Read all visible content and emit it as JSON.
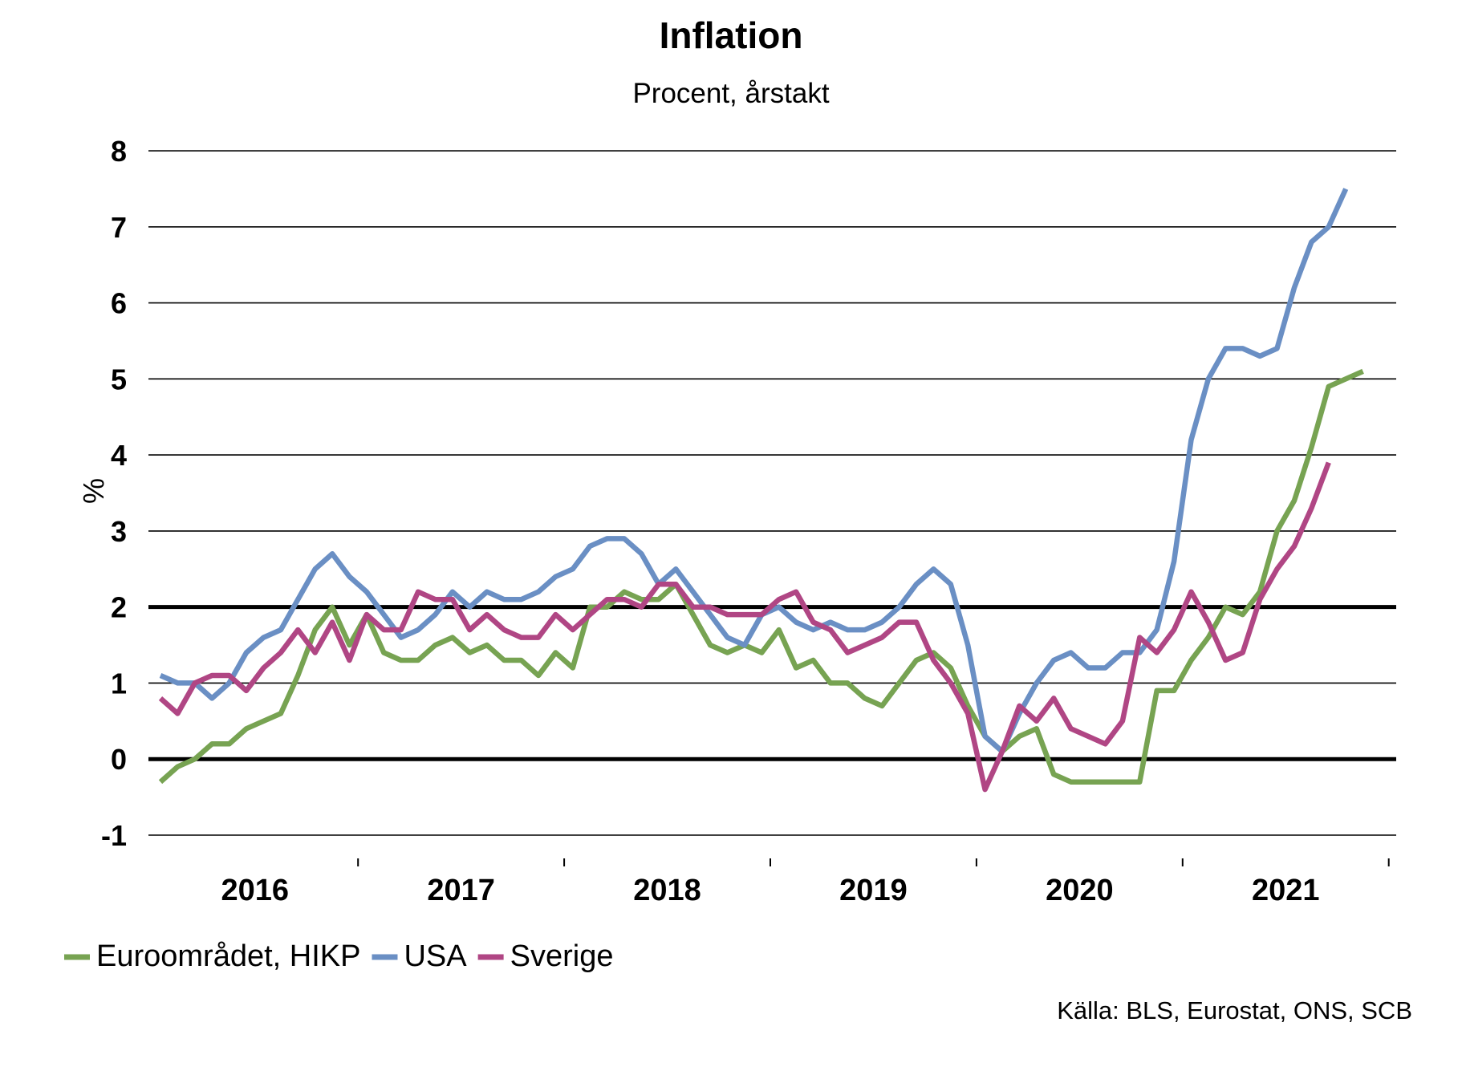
{
  "chart_data": {
    "type": "line",
    "title": "Inflation",
    "subtitle": "Procent, årstakt",
    "ylabel": "%",
    "xlabel": "",
    "source": "Källa: BLS, Eurostat, ONS, SCB",
    "ylim": [
      -1,
      8
    ],
    "yticks": [
      "-1",
      "0",
      "1",
      "2",
      "3",
      "4",
      "5",
      "6",
      "7",
      "8"
    ],
    "reference_lines": [
      0,
      2
    ],
    "grid": true,
    "legend": "bottom-left",
    "x_start": "2016-01",
    "x_end": "2021-12",
    "year_labels": [
      "2016",
      "2017",
      "2018",
      "2019",
      "2020",
      "2021"
    ],
    "series": [
      {
        "name": "Euroområdet, HIKP",
        "color": "#77a352",
        "start": "2016-01",
        "values": [
          -0.3,
          -0.1,
          0.0,
          0.2,
          0.2,
          0.4,
          0.5,
          0.6,
          1.1,
          1.7,
          2.0,
          1.5,
          1.9,
          1.4,
          1.3,
          1.3,
          1.5,
          1.6,
          1.4,
          1.5,
          1.3,
          1.3,
          1.1,
          1.4,
          1.2,
          2.0,
          2.0,
          2.2,
          2.1,
          2.1,
          2.3,
          1.9,
          1.5,
          1.4,
          1.5,
          1.4,
          1.7,
          1.2,
          1.3,
          1.0,
          1.0,
          0.8,
          0.7,
          1.0,
          1.3,
          1.4,
          1.2,
          0.7,
          0.3,
          0.1,
          0.3,
          0.4,
          -0.2,
          -0.3,
          -0.3,
          -0.3,
          -0.3,
          -0.3,
          0.9,
          0.9,
          1.3,
          1.6,
          2.0,
          1.9,
          2.2,
          3.0,
          3.4,
          4.1,
          4.9,
          5.0,
          5.1
        ]
      },
      {
        "name": "USA",
        "color": "#6a8fc4",
        "start": "2016-01",
        "values": [
          1.1,
          1.0,
          1.0,
          0.8,
          1.0,
          1.4,
          1.6,
          1.7,
          2.1,
          2.5,
          2.7,
          2.4,
          2.2,
          1.9,
          1.6,
          1.7,
          1.9,
          2.2,
          2.0,
          2.2,
          2.1,
          2.1,
          2.2,
          2.4,
          2.5,
          2.8,
          2.9,
          2.9,
          2.7,
          2.3,
          2.5,
          2.2,
          1.9,
          1.6,
          1.5,
          1.9,
          2.0,
          1.8,
          1.7,
          1.8,
          1.7,
          1.7,
          1.8,
          2.0,
          2.3,
          2.5,
          2.3,
          1.5,
          0.3,
          0.1,
          0.6,
          1.0,
          1.3,
          1.4,
          1.2,
          1.2,
          1.4,
          1.4,
          1.7,
          2.6,
          4.2,
          5.0,
          5.4,
          5.4,
          5.3,
          5.4,
          6.2,
          6.8,
          7.0,
          7.5
        ]
      },
      {
        "name": "Sverige",
        "color": "#b04684",
        "start": "2016-01",
        "values": [
          0.8,
          0.6,
          1.0,
          1.1,
          1.1,
          0.9,
          1.2,
          1.4,
          1.7,
          1.4,
          1.8,
          1.3,
          1.9,
          1.7,
          1.7,
          2.2,
          2.1,
          2.1,
          1.7,
          1.9,
          1.7,
          1.6,
          1.6,
          1.9,
          1.7,
          1.9,
          2.1,
          2.1,
          2.0,
          2.3,
          2.3,
          2.0,
          2.0,
          1.9,
          1.9,
          1.9,
          2.1,
          2.2,
          1.8,
          1.7,
          1.4,
          1.5,
          1.6,
          1.8,
          1.8,
          1.3,
          1.0,
          0.6,
          -0.4,
          0.1,
          0.7,
          0.5,
          0.8,
          0.4,
          0.3,
          0.2,
          0.5,
          1.6,
          1.4,
          1.7,
          2.2,
          1.8,
          1.3,
          1.4,
          2.1,
          2.5,
          2.8,
          3.3,
          3.9
        ]
      }
    ]
  }
}
